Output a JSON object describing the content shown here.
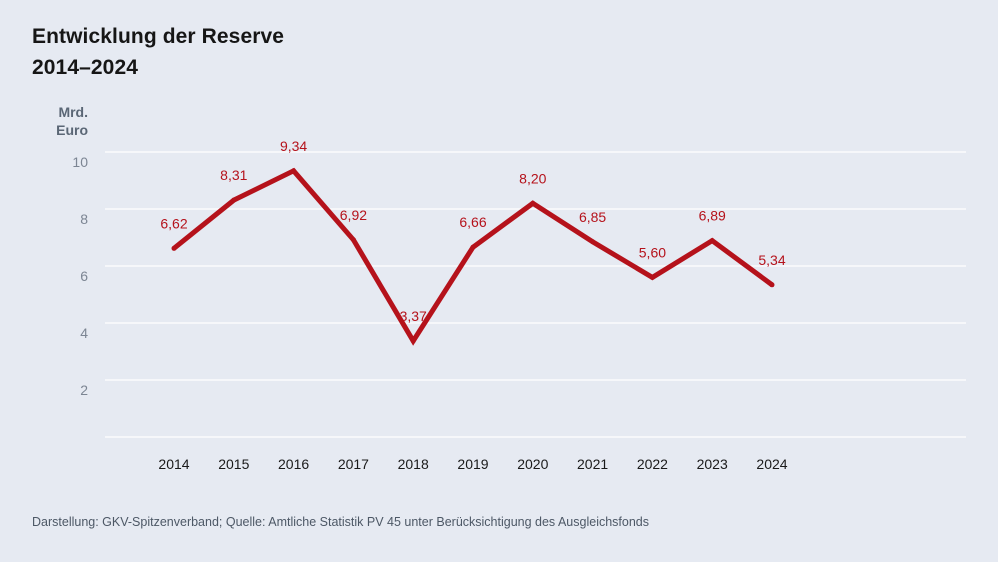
{
  "title": "Entwicklung der Reserve",
  "subtitle": "2014–2024",
  "unit_label": [
    "Mrd.",
    "Euro"
  ],
  "source": "Darstellung: GKV-Spitzenverband; Quelle: Amtliche Statistik PV 45 unter Berücksichtigung des Ausgleichsfonds",
  "colors": {
    "background": "#e6eaf2",
    "line": "#b5121b",
    "data_label": "#b5121b",
    "grid": "#ffffff",
    "tick_label": "#7c8593",
    "category_label": "#1a1a1a"
  },
  "chart_data": {
    "type": "line",
    "categories": [
      "2014",
      "2015",
      "2016",
      "2017",
      "2018",
      "2019",
      "2020",
      "2021",
      "2022",
      "2023",
      "2024"
    ],
    "series": [
      {
        "values": [
          6.62,
          8.31,
          9.34,
          6.92,
          3.37,
          6.66,
          8.2,
          6.85,
          5.6,
          6.89,
          5.34
        ],
        "labels": [
          "6,62",
          "8,31",
          "9,34",
          "6,92",
          "3,37",
          "6,66",
          "8,20",
          "6,85",
          "5,60",
          "6,89",
          "5,34"
        ]
      }
    ],
    "y_ticks": [
      2,
      4,
      6,
      8,
      10
    ],
    "ylim": [
      0,
      10
    ],
    "grid": true,
    "legend": "none"
  }
}
